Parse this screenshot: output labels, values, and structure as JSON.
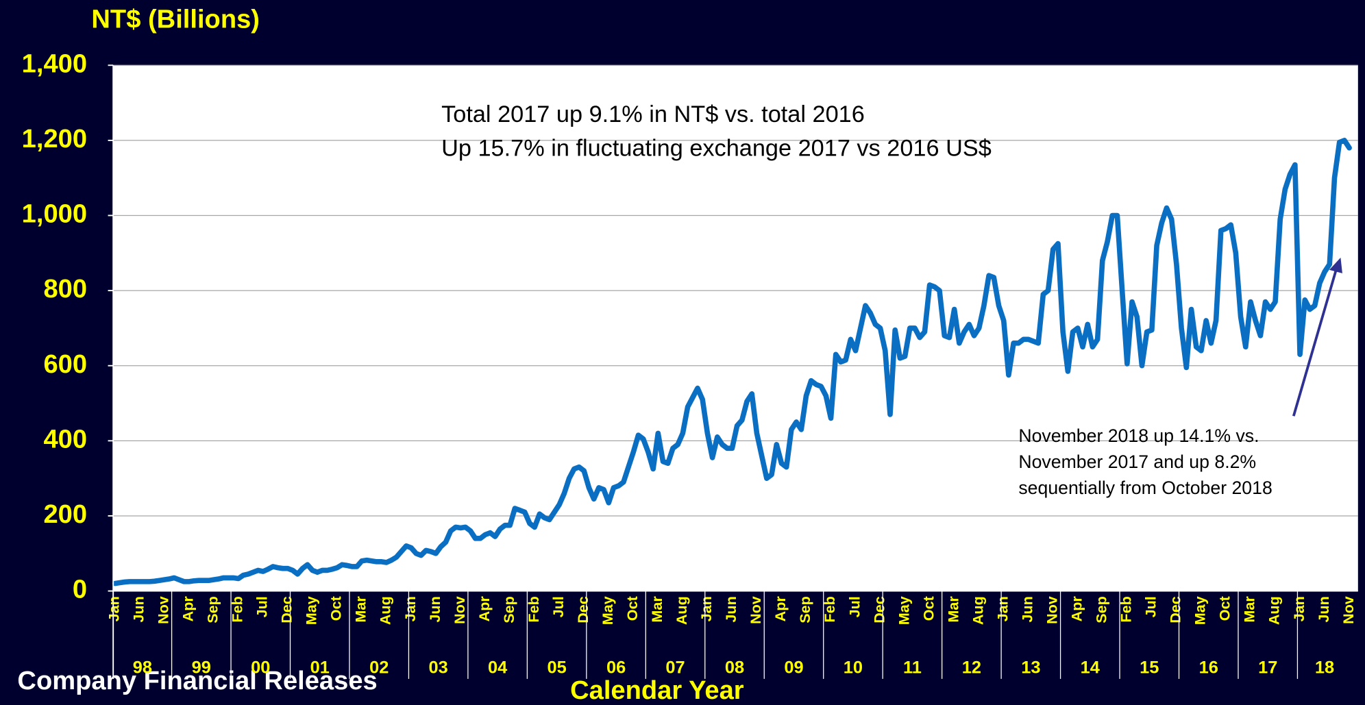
{
  "chart_data": {
    "type": "line",
    "title": "NT$ (Billions)",
    "xlabel": "Calendar Year",
    "source": "Company Financial Releases",
    "annotations": [
      [
        "Total 2017 up 9.1% in NT$ vs. total 2016",
        "Up 15.7% in fluctuating exchange 2017 vs 2016 US$"
      ],
      [
        "November 2018 up 14.1% vs.",
        "November 2017 and up 8.2%",
        "sequentially from October 2018"
      ]
    ],
    "years": [
      "98",
      "99",
      "00",
      "01",
      "02",
      "03",
      "04",
      "05",
      "06",
      "07",
      "08",
      "09",
      "10",
      "11",
      "12",
      "13",
      "14",
      "15",
      "16",
      "17",
      "18"
    ],
    "categories": [
      "Jan",
      null,
      null,
      null,
      null,
      "Jun",
      null,
      null,
      null,
      null,
      "Nov",
      null,
      null,
      null,
      null,
      "Apr",
      null,
      null,
      null,
      null,
      "Sep",
      null,
      null,
      null,
      null,
      "Feb",
      null,
      null,
      null,
      null,
      "Jul",
      null,
      null,
      null,
      null,
      "Dec",
      null,
      null,
      null,
      null,
      "May",
      null,
      null,
      null,
      null,
      "Oct",
      null,
      null,
      null,
      null,
      "Mar",
      null,
      null,
      null,
      null,
      "Aug",
      null,
      null,
      null,
      null,
      "Jan",
      null,
      null,
      null,
      null,
      "Jun",
      null,
      null,
      null,
      null,
      "Nov",
      null,
      null,
      null,
      null,
      "Apr",
      null,
      null,
      null,
      null,
      "Sep",
      null,
      null,
      null,
      null,
      "Feb",
      null,
      null,
      null,
      null,
      "Jul",
      null,
      null,
      null,
      null,
      "Dec",
      null,
      null,
      null,
      null,
      "May",
      null,
      null,
      null,
      null,
      "Oct",
      null,
      null,
      null,
      null,
      "Mar",
      null,
      null,
      null,
      null,
      "Aug",
      null,
      null,
      null,
      null,
      "Jan",
      null,
      null,
      null,
      null,
      "Jun",
      null,
      null,
      null,
      null,
      "Nov",
      null,
      null,
      null,
      null,
      "Apr",
      null,
      null,
      null,
      null,
      "Sep",
      null,
      null,
      null,
      null,
      "Feb",
      null,
      null,
      null,
      null,
      "Jul",
      null,
      null,
      null,
      null,
      "Dec",
      null,
      null,
      null,
      null,
      "May",
      null,
      null,
      null,
      null,
      "Oct",
      null,
      null,
      null,
      null,
      "Mar",
      null,
      null,
      null,
      null,
      "Aug",
      null,
      null,
      null,
      null,
      "Jan",
      null,
      null,
      null,
      null,
      "Jun",
      null,
      null,
      null,
      null,
      "Nov",
      null,
      null,
      null,
      null,
      "Apr",
      null,
      null,
      null,
      null,
      "Sep",
      null,
      null,
      null,
      null,
      "Feb",
      null,
      null,
      null,
      null,
      "Jul",
      null,
      null,
      null,
      null,
      "Dec",
      null,
      null,
      null,
      null,
      "May",
      null,
      null,
      null,
      null,
      "Oct",
      null,
      null,
      null,
      null,
      "Mar",
      null,
      null,
      null,
      null,
      "Aug",
      null,
      null,
      null,
      null,
      "Jan",
      null,
      null,
      null,
      null,
      "Jun",
      null,
      null,
      null,
      null,
      "Nov"
    ],
    "values": [
      20,
      22,
      24,
      25,
      25,
      25,
      25,
      25,
      26,
      28,
      30,
      32,
      35,
      30,
      25,
      25,
      27,
      28,
      28,
      28,
      30,
      32,
      35,
      35,
      35,
      33,
      42,
      45,
      50,
      55,
      52,
      58,
      65,
      62,
      60,
      60,
      55,
      45,
      60,
      70,
      55,
      50,
      55,
      55,
      58,
      62,
      70,
      68,
      65,
      65,
      80,
      82,
      80,
      78,
      78,
      76,
      82,
      90,
      105,
      120,
      115,
      100,
      95,
      108,
      105,
      100,
      118,
      130,
      160,
      170,
      168,
      170,
      160,
      140,
      140,
      150,
      155,
      145,
      165,
      175,
      175,
      220,
      215,
      210,
      180,
      170,
      205,
      195,
      190,
      210,
      230,
      260,
      300,
      325,
      330,
      320,
      275,
      245,
      275,
      270,
      235,
      275,
      280,
      290,
      330,
      370,
      415,
      405,
      370,
      325,
      420,
      345,
      340,
      380,
      390,
      420,
      490,
      515,
      540,
      510,
      420,
      355,
      410,
      390,
      380,
      380,
      440,
      455,
      505,
      525,
      420,
      360,
      300,
      310,
      390,
      340,
      330,
      430,
      450,
      430,
      520,
      560,
      550,
      545,
      520,
      460,
      630,
      610,
      615,
      670,
      640,
      700,
      760,
      740,
      710,
      700,
      640,
      470,
      695,
      620,
      625,
      700,
      700,
      675,
      690,
      815,
      810,
      800,
      680,
      675,
      750,
      660,
      690,
      710,
      680,
      700,
      760,
      840,
      835,
      760,
      720,
      575,
      660,
      660,
      670,
      670,
      665,
      660,
      790,
      800,
      910,
      925,
      690,
      585,
      690,
      700,
      650,
      710,
      650,
      670,
      880,
      930,
      1000,
      1000,
      800,
      605,
      770,
      730,
      600,
      690,
      695,
      920,
      980,
      1020,
      990,
      870,
      700,
      595,
      750,
      650,
      640,
      720,
      660,
      720,
      960,
      965,
      975,
      900,
      730,
      650,
      770,
      720,
      680,
      770,
      750,
      770,
      990,
      1070,
      1110,
      1135,
      630,
      775,
      750,
      760,
      820,
      850,
      870,
      1100,
      1195,
      1200,
      1180
    ],
    "color": "#0a6fc2",
    "ylim": [
      0,
      1400
    ],
    "yticks": [
      0,
      200,
      400,
      600,
      800,
      {
        "value": 1000,
        "label": "1,000"
      },
      {
        "value": 1200,
        "label": "1,200"
      },
      {
        "value": 1400,
        "label": "1,400"
      }
    ],
    "grid": true
  }
}
